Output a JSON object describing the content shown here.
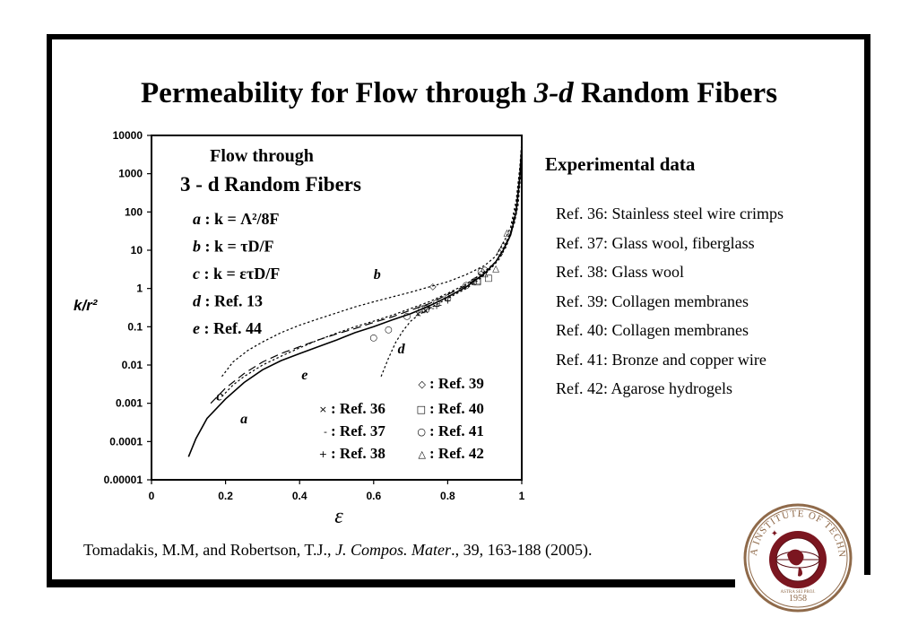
{
  "title": {
    "before": "Permeability for Flow through ",
    "italic": "3-d",
    "after": " Random Fibers"
  },
  "experimental": {
    "heading": "Experimental data",
    "refs": [
      "Ref. 36:  Stainless steel wire crimps",
      "Ref. 37:  Glass wool, fiberglass",
      "Ref. 38:  Glass wool",
      "Ref. 39:  Collagen membranes",
      "Ref. 40:  Collagen membranes",
      "Ref. 41:  Bronze and copper wire",
      "Ref. 42:  Agarose hydrogels"
    ]
  },
  "citation": {
    "authors": "Tomadakis, M.M, and Robertson, T.J., ",
    "journal": "J. Compos. Mater",
    "details": "., 39, 163-188 (2005)."
  },
  "seal": {
    "text": "FLORIDA INSTITUTE OF TECHNOLOGY",
    "year": "1958",
    "motto": "ASTRA SEI PROJ."
  },
  "chart_data": {
    "type": "line",
    "xlabel": "ε",
    "ylabel": "k/r²",
    "xlim": [
      0,
      1
    ],
    "ylim": [
      1e-05,
      10000
    ],
    "yscale": "log",
    "grid": false,
    "x_ticks": [
      "0",
      "0.2",
      "0.4",
      "0.6",
      "0.8",
      "1"
    ],
    "y_ticks": [
      "0.00001",
      "0.0001",
      "0.001",
      "0.01",
      "0.1",
      "1",
      "10",
      "100",
      "1000",
      "10000"
    ],
    "inset_title_line1": "Flow through",
    "inset_title_line2": "3 - d  Random Fibers",
    "legend_formulas": [
      {
        "key": "a",
        "sep": " : ",
        "expr": "k = Λ²/8F"
      },
      {
        "key": "b",
        "sep": " : ",
        "expr": "k = τD/F"
      },
      {
        "key": "c",
        "sep": " : ",
        "expr": "k = ετD/F"
      },
      {
        "key": "d",
        "sep": " : ",
        "expr": "Ref. 13"
      },
      {
        "key": "e",
        "sep": " :  ",
        "expr": "Ref. 44"
      }
    ],
    "series": [
      {
        "name": "a",
        "style": "solid",
        "label_at": [
          0.24,
          0.0003
        ],
        "points": [
          [
            0.1,
            4e-05
          ],
          [
            0.12,
            0.00012
          ],
          [
            0.15,
            0.0004
          ],
          [
            0.2,
            0.0013
          ],
          [
            0.25,
            0.0035
          ],
          [
            0.3,
            0.0075
          ],
          [
            0.35,
            0.013
          ],
          [
            0.4,
            0.02
          ],
          [
            0.45,
            0.03
          ],
          [
            0.5,
            0.045
          ],
          [
            0.55,
            0.07
          ],
          [
            0.6,
            0.1
          ],
          [
            0.65,
            0.15
          ],
          [
            0.7,
            0.22
          ],
          [
            0.75,
            0.35
          ],
          [
            0.8,
            0.6
          ],
          [
            0.85,
            1.1
          ],
          [
            0.9,
            2.5
          ],
          [
            0.93,
            5
          ],
          [
            0.95,
            10
          ],
          [
            0.97,
            25
          ],
          [
            0.985,
            100
          ],
          [
            0.995,
            800
          ],
          [
            1.0,
            5000
          ]
        ]
      },
      {
        "name": "b",
        "style": "dotted",
        "label_at": [
          0.6,
          1.8
        ],
        "points": [
          [
            0.19,
            0.005
          ],
          [
            0.22,
            0.012
          ],
          [
            0.26,
            0.024
          ],
          [
            0.3,
            0.04
          ],
          [
            0.35,
            0.07
          ],
          [
            0.4,
            0.11
          ],
          [
            0.45,
            0.16
          ],
          [
            0.5,
            0.23
          ],
          [
            0.55,
            0.33
          ],
          [
            0.6,
            0.45
          ],
          [
            0.65,
            0.6
          ],
          [
            0.7,
            0.8
          ],
          [
            0.75,
            1.1
          ],
          [
            0.8,
            1.5
          ],
          [
            0.85,
            2.3
          ],
          [
            0.9,
            4
          ],
          [
            0.93,
            7
          ],
          [
            0.95,
            15
          ],
          [
            0.97,
            40
          ],
          [
            0.985,
            200
          ],
          [
            0.995,
            1500
          ],
          [
            1.0,
            7000
          ]
        ]
      },
      {
        "name": "c",
        "style": "dotted",
        "label_at": [
          0.175,
          0.0012
        ],
        "points": [
          [
            0.19,
            0.0015
          ],
          [
            0.22,
            0.003
          ],
          [
            0.25,
            0.005
          ],
          [
            0.3,
            0.01
          ],
          [
            0.35,
            0.017
          ],
          [
            0.4,
            0.028
          ],
          [
            0.45,
            0.045
          ],
          [
            0.5,
            0.068
          ],
          [
            0.55,
            0.1
          ],
          [
            0.6,
            0.14
          ],
          [
            0.65,
            0.2
          ],
          [
            0.7,
            0.3
          ],
          [
            0.75,
            0.45
          ],
          [
            0.8,
            0.75
          ],
          [
            0.85,
            1.3
          ],
          [
            0.9,
            2.8
          ],
          [
            0.93,
            5
          ],
          [
            0.95,
            11
          ],
          [
            0.97,
            30
          ],
          [
            0.985,
            150
          ],
          [
            0.995,
            1200
          ],
          [
            1.0,
            6000
          ]
        ]
      },
      {
        "name": "d",
        "style": "dotted",
        "label_at": [
          0.665,
          0.02
        ],
        "points": [
          [
            0.62,
            0.005
          ],
          [
            0.64,
            0.015
          ],
          [
            0.66,
            0.04
          ],
          [
            0.68,
            0.08
          ],
          [
            0.7,
            0.14
          ],
          [
            0.72,
            0.2
          ],
          [
            0.75,
            0.3
          ],
          [
            0.8,
            0.55
          ],
          [
            0.85,
            1
          ],
          [
            0.88,
            1.6
          ],
          [
            0.9,
            2.3
          ],
          [
            0.92,
            3.6
          ],
          [
            0.94,
            6
          ],
          [
            0.96,
            14
          ],
          [
            0.98,
            50
          ],
          [
            0.99,
            150
          ],
          [
            1.0,
            2000
          ]
        ]
      },
      {
        "name": "e",
        "style": "dashed",
        "label_at": [
          0.405,
          0.0042
        ],
        "points": [
          [
            0.16,
            0.001
          ],
          [
            0.2,
            0.0025
          ],
          [
            0.25,
            0.006
          ],
          [
            0.3,
            0.012
          ],
          [
            0.35,
            0.02
          ],
          [
            0.4,
            0.03
          ],
          [
            0.45,
            0.045
          ],
          [
            0.5,
            0.065
          ],
          [
            0.55,
            0.09
          ],
          [
            0.6,
            0.13
          ],
          [
            0.65,
            0.18
          ],
          [
            0.7,
            0.27
          ],
          [
            0.75,
            0.4
          ],
          [
            0.8,
            0.7
          ],
          [
            0.85,
            1.2
          ],
          [
            0.9,
            2.5
          ],
          [
            0.93,
            5
          ],
          [
            0.95,
            10
          ],
          [
            0.97,
            28
          ],
          [
            0.985,
            120
          ],
          [
            0.995,
            900
          ],
          [
            1.0,
            5000
          ]
        ]
      }
    ],
    "markers": [
      {
        "ref": "Ref. 36",
        "symbol": "×",
        "points": [
          [
            0.72,
            0.23
          ],
          [
            0.74,
            0.28
          ]
        ]
      },
      {
        "ref": "Ref. 37",
        "symbol": "-",
        "points": [
          [
            0.73,
            0.27
          ],
          [
            0.76,
            0.32
          ],
          [
            0.78,
            0.38
          ]
        ]
      },
      {
        "ref": "Ref. 38",
        "symbol": "+",
        "points": [
          [
            0.75,
            0.33
          ],
          [
            0.77,
            0.36
          ],
          [
            0.8,
            0.5
          ]
        ]
      },
      {
        "ref": "Ref. 39",
        "symbol": "◇",
        "points": [
          [
            0.76,
            1.2
          ],
          [
            0.89,
            2.6
          ]
        ]
      },
      {
        "ref": "Ref. 40",
        "symbol": "□",
        "points": [
          [
            0.73,
            0.3
          ],
          [
            0.74,
            0.32
          ],
          [
            0.88,
            1.6
          ],
          [
            0.91,
            2
          ],
          [
            0.88,
            1.7
          ]
        ]
      },
      {
        "ref": "Ref. 41",
        "symbol": "○",
        "points": [
          [
            0.6,
            0.055
          ],
          [
            0.64,
            0.09
          ],
          [
            0.69,
            0.2
          ],
          [
            0.77,
            0.45
          ],
          [
            0.8,
            0.6
          ],
          [
            0.85,
            1.3
          ],
          [
            0.87,
            1.6
          ],
          [
            0.89,
            3
          ],
          [
            0.9,
            3.2
          ]
        ]
      },
      {
        "ref": "Ref. 42",
        "symbol": "△",
        "points": [
          [
            0.9,
            2.6
          ],
          [
            0.93,
            3.5
          ],
          [
            0.94,
            10
          ],
          [
            0.95,
            15
          ],
          [
            0.96,
            30
          ]
        ]
      }
    ],
    "marker_legend": [
      {
        "symbol": "◇",
        "label": ": Ref. 39"
      },
      {
        "symbol": "×",
        "label": ": Ref. 36"
      },
      {
        "symbol": "□",
        "label": ": Ref. 40"
      },
      {
        "symbol": "-",
        "label": ": Ref. 37"
      },
      {
        "symbol": "○",
        "label": ": Ref. 41"
      },
      {
        "symbol": "+",
        "label": ": Ref. 38"
      },
      {
        "symbol": "△",
        "label": ": Ref. 42"
      }
    ]
  }
}
